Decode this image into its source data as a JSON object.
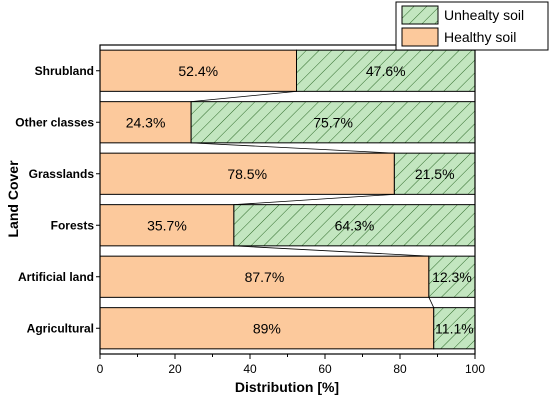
{
  "chart_data": {
    "type": "bar",
    "orientation": "horizontal",
    "stacked": true,
    "categories": [
      "Agricultural",
      "Artificial land",
      "Forests",
      "Grasslands",
      "Other classes",
      "Shrubland"
    ],
    "series": [
      {
        "name": "Healthy soil",
        "values": [
          89,
          87.7,
          35.7,
          78.5,
          24.3,
          52.4
        ],
        "labels": [
          "89%",
          "87.7%",
          "35.7%",
          "78.5%",
          "24.3%",
          "52.4%"
        ],
        "color": "#fcc99c"
      },
      {
        "name": "Unhealty soil",
        "values": [
          11.1,
          12.3,
          64.3,
          21.5,
          75.7,
          47.6
        ],
        "labels": [
          "11.1%",
          "12.3%",
          "64.3%",
          "21.5%",
          "75.7%",
          "47.6%"
        ],
        "color": "#c3e6c0",
        "hatch": "diagonal"
      }
    ],
    "xlabel": "Distribution [%]",
    "ylabel": "Land Cover",
    "xlim": [
      0,
      100
    ],
    "xticks": [
      "0",
      "20",
      "40",
      "60",
      "80",
      "100"
    ],
    "legend_position": "top-right",
    "legend_order": [
      "Unhealty soil",
      "Healthy soil"
    ],
    "grid": false
  }
}
